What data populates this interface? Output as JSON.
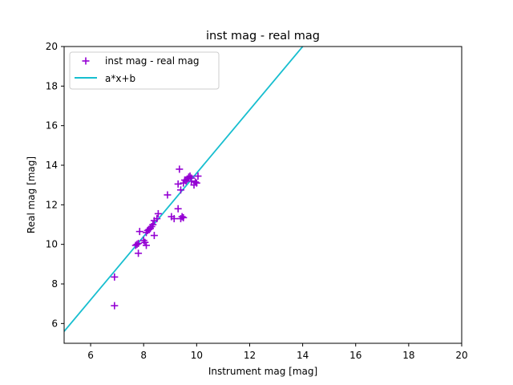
{
  "chart_data": {
    "type": "scatter",
    "title": "inst mag - real mag",
    "xlabel": "Instrument mag [mag]",
    "ylabel": "Real mag [mag]",
    "xlim": [
      5,
      20
    ],
    "ylim": [
      5,
      20
    ],
    "xticks": [
      6,
      8,
      10,
      12,
      14,
      16,
      18,
      20
    ],
    "yticks": [
      6,
      8,
      10,
      12,
      14,
      16,
      18,
      20
    ],
    "grid": false,
    "legend_position": "upper-left",
    "series": [
      {
        "name": "inst mag - real mag",
        "kind": "scatter",
        "marker": "+",
        "color": "#9400d3",
        "points": [
          [
            6.9,
            8.35
          ],
          [
            6.9,
            6.9
          ],
          [
            7.7,
            9.95
          ],
          [
            7.75,
            10.0
          ],
          [
            7.8,
            10.05
          ],
          [
            7.8,
            9.55
          ],
          [
            7.85,
            10.65
          ],
          [
            8.0,
            10.2
          ],
          [
            8.05,
            10.1
          ],
          [
            8.1,
            9.95
          ],
          [
            8.1,
            10.6
          ],
          [
            8.15,
            10.7
          ],
          [
            8.2,
            10.75
          ],
          [
            8.25,
            10.8
          ],
          [
            8.3,
            10.9
          ],
          [
            8.35,
            11.0
          ],
          [
            8.4,
            11.2
          ],
          [
            8.4,
            10.45
          ],
          [
            8.5,
            11.3
          ],
          [
            8.55,
            11.55
          ],
          [
            8.9,
            12.5
          ],
          [
            9.05,
            11.4
          ],
          [
            9.15,
            11.3
          ],
          [
            9.3,
            11.8
          ],
          [
            9.3,
            13.05
          ],
          [
            9.35,
            13.8
          ],
          [
            9.4,
            12.75
          ],
          [
            9.4,
            11.3
          ],
          [
            9.45,
            11.4
          ],
          [
            9.5,
            11.35
          ],
          [
            9.5,
            13.1
          ],
          [
            9.55,
            13.25
          ],
          [
            9.6,
            13.2
          ],
          [
            9.65,
            13.3
          ],
          [
            9.7,
            13.4
          ],
          [
            9.75,
            13.45
          ],
          [
            9.8,
            13.2
          ],
          [
            9.8,
            13.35
          ],
          [
            9.9,
            13.0
          ],
          [
            9.95,
            13.15
          ],
          [
            10.0,
            13.1
          ],
          [
            10.05,
            13.45
          ]
        ]
      },
      {
        "name": "a*x+b",
        "kind": "line",
        "color": "#17becf",
        "slope": 1.6,
        "intercept": -2.4
      }
    ]
  }
}
